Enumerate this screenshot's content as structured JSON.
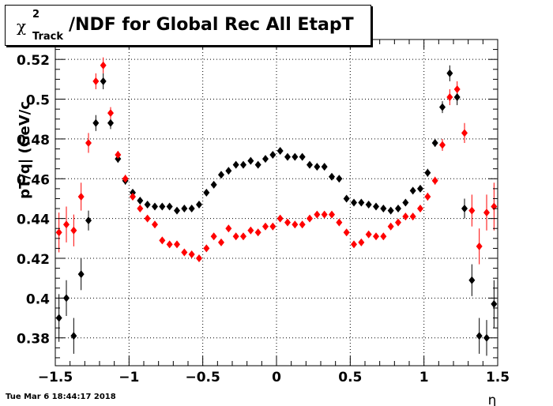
{
  "title": {
    "symbol": "χ",
    "superscript": "2",
    "subscript": "Track",
    "text": "/NDF for Global Rec All EtapT"
  },
  "timestamp": "Tue Mar  6 18:44:17 2018",
  "chart_data": {
    "type": "scatter",
    "xlabel": "η",
    "ylabel": "pT/q| (GeV/c",
    "xlim": [
      -1.5,
      1.5
    ],
    "ylim": [
      0.366,
      0.53
    ],
    "xticks": [
      -1.5,
      -1,
      -0.5,
      0,
      0.5,
      1,
      1.5
    ],
    "xtick_labels": [
      "−1.5",
      "−1",
      "−0.5",
      "0",
      "0.5",
      "1",
      "1.5"
    ],
    "yticks": [
      0.38,
      0.4,
      0.42,
      0.44,
      0.46,
      0.48,
      0.5,
      0.52
    ],
    "ytick_labels": [
      "0.38",
      "0.4",
      "0.42",
      "0.44",
      "0.46",
      "0.48",
      "0.5",
      "0.52"
    ],
    "grid": true,
    "colors": {
      "black": "#000000",
      "red": "#ff0000"
    },
    "series": [
      {
        "color": "#000000",
        "x": [
          -1.475,
          -1.425,
          -1.375,
          -1.325,
          -1.275,
          -1.225,
          -1.175,
          -1.125,
          -1.075,
          -1.025,
          -0.975,
          -0.925,
          -0.875,
          -0.825,
          -0.775,
          -0.725,
          -0.675,
          -0.625,
          -0.575,
          -0.525,
          -0.475,
          -0.425,
          -0.375,
          -0.325,
          -0.275,
          -0.225,
          -0.175,
          -0.125,
          -0.075,
          -0.025,
          0.025,
          0.075,
          0.125,
          0.175,
          0.225,
          0.275,
          0.325,
          0.375,
          0.425,
          0.475,
          0.525,
          0.575,
          0.625,
          0.675,
          0.725,
          0.775,
          0.825,
          0.875,
          0.925,
          0.975,
          1.025,
          1.075,
          1.125,
          1.175,
          1.225,
          1.275,
          1.325,
          1.375,
          1.425,
          1.475
        ],
        "y": [
          0.39,
          0.4,
          0.381,
          0.412,
          0.439,
          0.488,
          0.509,
          0.488,
          0.47,
          0.459,
          0.453,
          0.449,
          0.447,
          0.446,
          0.446,
          0.446,
          0.444,
          0.445,
          0.445,
          0.447,
          0.453,
          0.457,
          0.462,
          0.464,
          0.467,
          0.467,
          0.469,
          0.467,
          0.47,
          0.472,
          0.474,
          0.471,
          0.471,
          0.471,
          0.467,
          0.466,
          0.466,
          0.461,
          0.46,
          0.45,
          0.448,
          0.448,
          0.447,
          0.446,
          0.445,
          0.444,
          0.445,
          0.448,
          0.454,
          0.455,
          0.463,
          0.478,
          0.496,
          0.513,
          0.501,
          0.445,
          0.409,
          0.381,
          0.38,
          0.397
        ],
        "yerr": [
          0.012,
          0.009,
          0.009,
          0.008,
          0.005,
          0.004,
          0.004,
          0.003,
          0.002,
          0.002,
          0.001,
          0.001,
          0.001,
          0.001,
          0.001,
          0.001,
          0.001,
          0.001,
          0.001,
          0.001,
          0.001,
          0.001,
          0.001,
          0.001,
          0.001,
          0.001,
          0.001,
          0.001,
          0.001,
          0.001,
          0.001,
          0.001,
          0.001,
          0.001,
          0.001,
          0.001,
          0.001,
          0.001,
          0.001,
          0.001,
          0.001,
          0.001,
          0.001,
          0.001,
          0.001,
          0.001,
          0.001,
          0.001,
          0.001,
          0.001,
          0.002,
          0.002,
          0.003,
          0.004,
          0.004,
          0.005,
          0.008,
          0.009,
          0.009,
          0.012
        ]
      },
      {
        "color": "#ff0000",
        "x": [
          -1.475,
          -1.425,
          -1.375,
          -1.325,
          -1.275,
          -1.225,
          -1.175,
          -1.125,
          -1.075,
          -1.025,
          -0.975,
          -0.925,
          -0.875,
          -0.825,
          -0.775,
          -0.725,
          -0.675,
          -0.625,
          -0.575,
          -0.525,
          -0.475,
          -0.425,
          -0.375,
          -0.325,
          -0.275,
          -0.225,
          -0.175,
          -0.125,
          -0.075,
          -0.025,
          0.025,
          0.075,
          0.125,
          0.175,
          0.225,
          0.275,
          0.325,
          0.375,
          0.425,
          0.475,
          0.525,
          0.575,
          0.625,
          0.675,
          0.725,
          0.775,
          0.825,
          0.875,
          0.925,
          0.975,
          1.025,
          1.075,
          1.125,
          1.175,
          1.225,
          1.275,
          1.325,
          1.375,
          1.425,
          1.475
        ],
        "y": [
          0.433,
          0.437,
          0.434,
          0.451,
          0.478,
          0.509,
          0.517,
          0.493,
          0.472,
          0.46,
          0.451,
          0.445,
          0.44,
          0.437,
          0.429,
          0.427,
          0.427,
          0.423,
          0.422,
          0.42,
          0.425,
          0.431,
          0.428,
          0.435,
          0.431,
          0.431,
          0.434,
          0.433,
          0.436,
          0.436,
          0.44,
          0.438,
          0.437,
          0.437,
          0.44,
          0.442,
          0.442,
          0.442,
          0.438,
          0.433,
          0.427,
          0.428,
          0.432,
          0.431,
          0.431,
          0.436,
          0.438,
          0.441,
          0.441,
          0.445,
          0.451,
          0.459,
          0.477,
          0.501,
          0.505,
          0.483,
          0.444,
          0.426,
          0.443,
          0.446
        ],
        "yerr": [
          0.01,
          0.009,
          0.008,
          0.007,
          0.005,
          0.004,
          0.004,
          0.003,
          0.002,
          0.002,
          0.001,
          0.001,
          0.001,
          0.001,
          0.001,
          0.001,
          0.001,
          0.001,
          0.001,
          0.001,
          0.001,
          0.001,
          0.001,
          0.001,
          0.001,
          0.001,
          0.001,
          0.001,
          0.001,
          0.001,
          0.001,
          0.001,
          0.001,
          0.001,
          0.001,
          0.001,
          0.001,
          0.001,
          0.001,
          0.001,
          0.001,
          0.001,
          0.001,
          0.001,
          0.001,
          0.001,
          0.001,
          0.001,
          0.001,
          0.001,
          0.002,
          0.002,
          0.003,
          0.004,
          0.004,
          0.005,
          0.008,
          0.009,
          0.009,
          0.012
        ]
      }
    ]
  }
}
